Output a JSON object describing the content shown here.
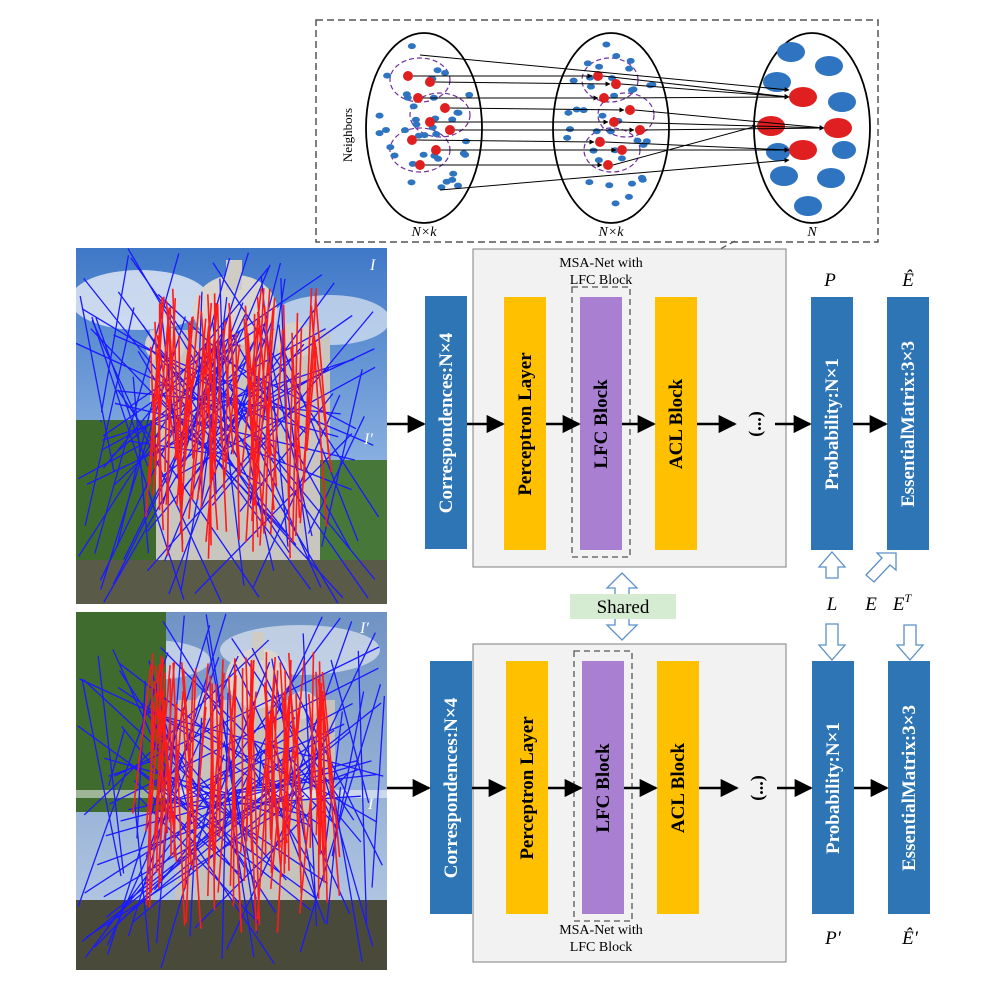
{
  "inset": {
    "side_label": "Neighbors",
    "group_labels": [
      "N×k",
      "N×k",
      "N"
    ]
  },
  "photos": {
    "top": {
      "label_upper": "I",
      "label_lower": "I′"
    },
    "bottom": {
      "label_upper": "I′",
      "label_lower": "I"
    }
  },
  "network": {
    "top_caption_line1": "MSA-Net with",
    "top_caption_line2": "LFC Block",
    "bottom_caption_line1": "MSA-Net with",
    "bottom_caption_line2": "LFC Block",
    "shared_label": "Shared",
    "top": {
      "correspondences": "Correspondences:N×4",
      "perceptron": "Perceptron Layer",
      "lfc": "LFC Block",
      "acl": "ACL Block",
      "ellipsis": "(...)",
      "probability": "Probability:N×1",
      "essential": "EssentialMatrix:3×3"
    },
    "bottom": {
      "correspondences": "Correspondences:N×4",
      "perceptron": "Perceptron Layer",
      "lfc": "LFC Block",
      "acl": "ACL Block",
      "ellipsis": "(...)",
      "probability": "Probability:N×1",
      "essential": "EssentialMatrix:3×3"
    }
  },
  "symbols": {
    "P": "P",
    "E_hat": "Ê",
    "L": "L",
    "E": "E",
    "E_T": "E",
    "E_T_sup": "T",
    "P_prime": "P′",
    "E_hat_prime": "Ê′"
  },
  "colors": {
    "blue_box": "#2e75b6",
    "yellow_box": "#ffc000",
    "purple_box": "#a97fd1",
    "shared_box": "#d6ecd2",
    "match_inlier": "#ff1a1a",
    "match_outlier": "#1a1aff",
    "node_red": "#e02020",
    "node_blue": "#2f74c0"
  }
}
